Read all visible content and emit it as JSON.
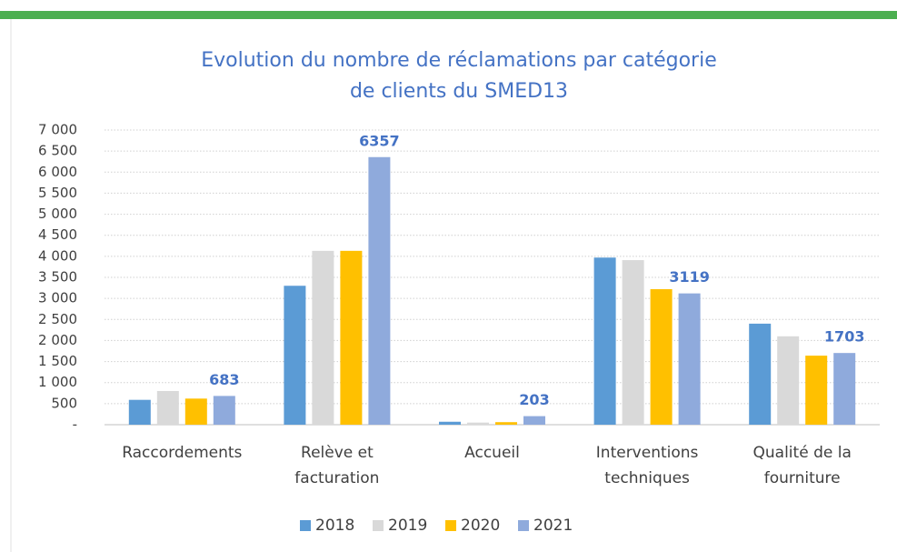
{
  "chart_data": {
    "type": "bar",
    "title": "Evolution du nombre de réclamations par catégorie",
    "subtitle": "de clients du SMED13",
    "categories": [
      "Raccordements",
      "Relève et facturation",
      "Accueil",
      "Interventions techniques",
      "Qualité de la fourniture"
    ],
    "series": [
      {
        "name": "2018",
        "color": "#5b9bd5",
        "values": [
          590,
          3300,
          70,
          3970,
          2400
        ]
      },
      {
        "name": "2019",
        "color": "#d9d9d9",
        "values": [
          800,
          4130,
          50,
          3910,
          2100
        ]
      },
      {
        "name": "2020",
        "color": "#ffc000",
        "values": [
          620,
          4130,
          60,
          3220,
          1640
        ]
      },
      {
        "name": "2021",
        "color": "#8faadc",
        "values": [
          683,
          6357,
          203,
          3119,
          1703
        ],
        "show_labels": true
      }
    ],
    "ylim": [
      0,
      7000
    ],
    "yticks": [
      {
        "value": 0,
        "label": "-"
      },
      {
        "value": 500,
        "label": "500"
      },
      {
        "value": 1000,
        "label": "1 000"
      },
      {
        "value": 1500,
        "label": "1 500"
      },
      {
        "value": 2000,
        "label": "2 000"
      },
      {
        "value": 2500,
        "label": "2 500"
      },
      {
        "value": 3000,
        "label": "3 000"
      },
      {
        "value": 3500,
        "label": "3 500"
      },
      {
        "value": 4000,
        "label": "4 000"
      },
      {
        "value": 4500,
        "label": "4 500"
      },
      {
        "value": 5000,
        "label": "5 000"
      },
      {
        "value": 5500,
        "label": "5 500"
      },
      {
        "value": 6000,
        "label": "6 000"
      },
      {
        "value": 6500,
        "label": "6 500"
      },
      {
        "value": 7000,
        "label": "7 000"
      }
    ],
    "grid": true,
    "legend": "bottom"
  }
}
